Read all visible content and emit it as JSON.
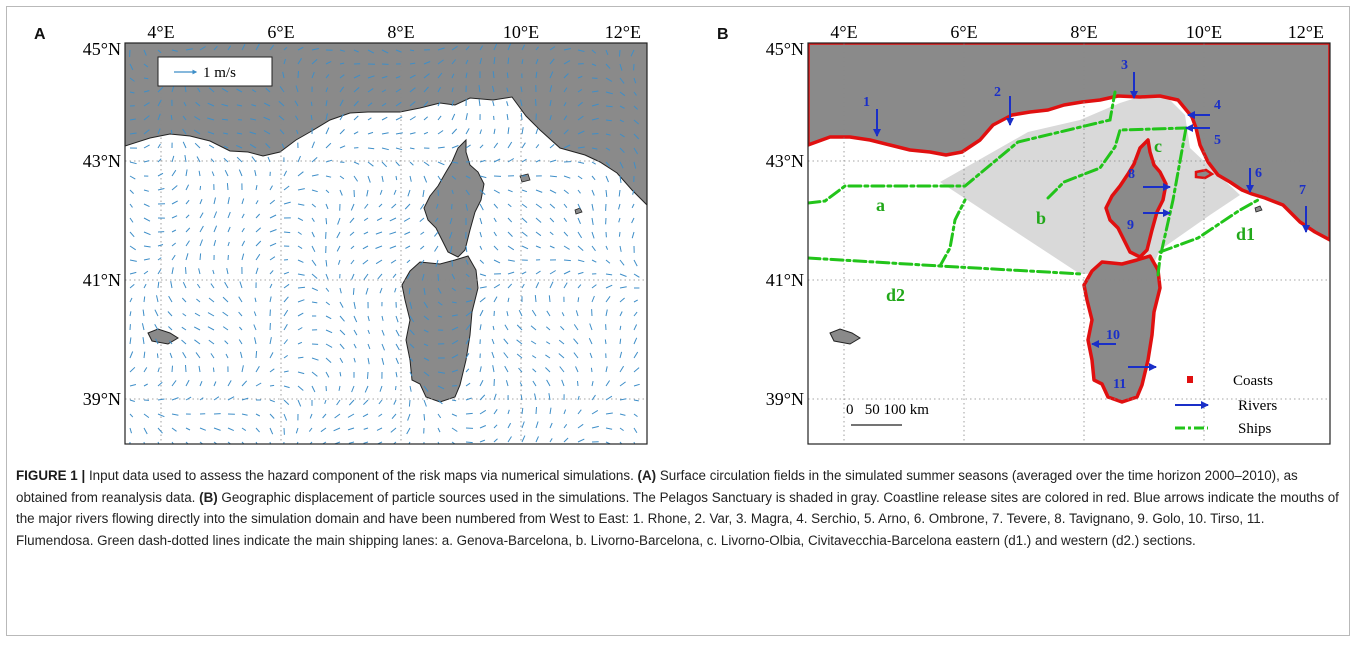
{
  "panels": {
    "a": {
      "letter": "A",
      "lon_labels": [
        "4°E",
        "6°E",
        "8°E",
        "10°E",
        "12°E"
      ],
      "lat_labels": [
        "45°N",
        "43°N",
        "41°N",
        "39°N"
      ],
      "legend_label": "1 m/s"
    },
    "b": {
      "letter": "B",
      "lon_labels": [
        "4°E",
        "6°E",
        "8°E",
        "10°E",
        "12°E"
      ],
      "lat_labels": [
        "45°N",
        "43°N",
        "41°N",
        "39°N"
      ],
      "river_numbers": [
        "1",
        "2",
        "3",
        "4",
        "5",
        "6",
        "7",
        "8",
        "9",
        "10",
        "11"
      ],
      "lane_labels": [
        "a",
        "b",
        "c",
        "d1",
        "d2"
      ],
      "legend": {
        "coasts": "Coasts",
        "rivers": "Rivers",
        "ships": "Ships"
      },
      "scale_bar": "0   50 100 km",
      "colors": {
        "coast": "#e01010",
        "river": "#1a2fc8",
        "ship": "#22c41a",
        "land": "#8c8c8c",
        "sanctuary": "#dadada"
      }
    }
  },
  "caption": {
    "label": "FIGURE 1 |",
    "intro": " Input data used to assess the hazard component of the risk maps via numerical simulations. ",
    "a_tag": "(A)",
    "a_text": " Surface circulation fields in the simulated summer seasons (averaged over the time horizon 2000–2010), as obtained from reanalysis data. ",
    "b_tag": "(B)",
    "b_text": " Geographic displacement of particle sources used in the simulations. The Pelagos Sanctuary is shaded in gray. Coastline release sites are colored in red. Blue arrows indicate the mouths of the major rivers flowing directly into the simulation domain and have been numbered from West to East: 1. Rhone, 2. Var, 3. Magra, 4. Serchio, 5. Arno, 6. Ombrone, 7. Tevere, 8. Tavignano, 9. Golo, 10. Tirso, 11. Flumendosa. Green dash-dotted lines indicate the main shipping lanes: a. Genova-Barcelona, b. Livorno-Barcelona, c. Livorno-Olbia, Civitavecchia-Barcelona eastern (d1.) and western (d2.) sections."
  }
}
